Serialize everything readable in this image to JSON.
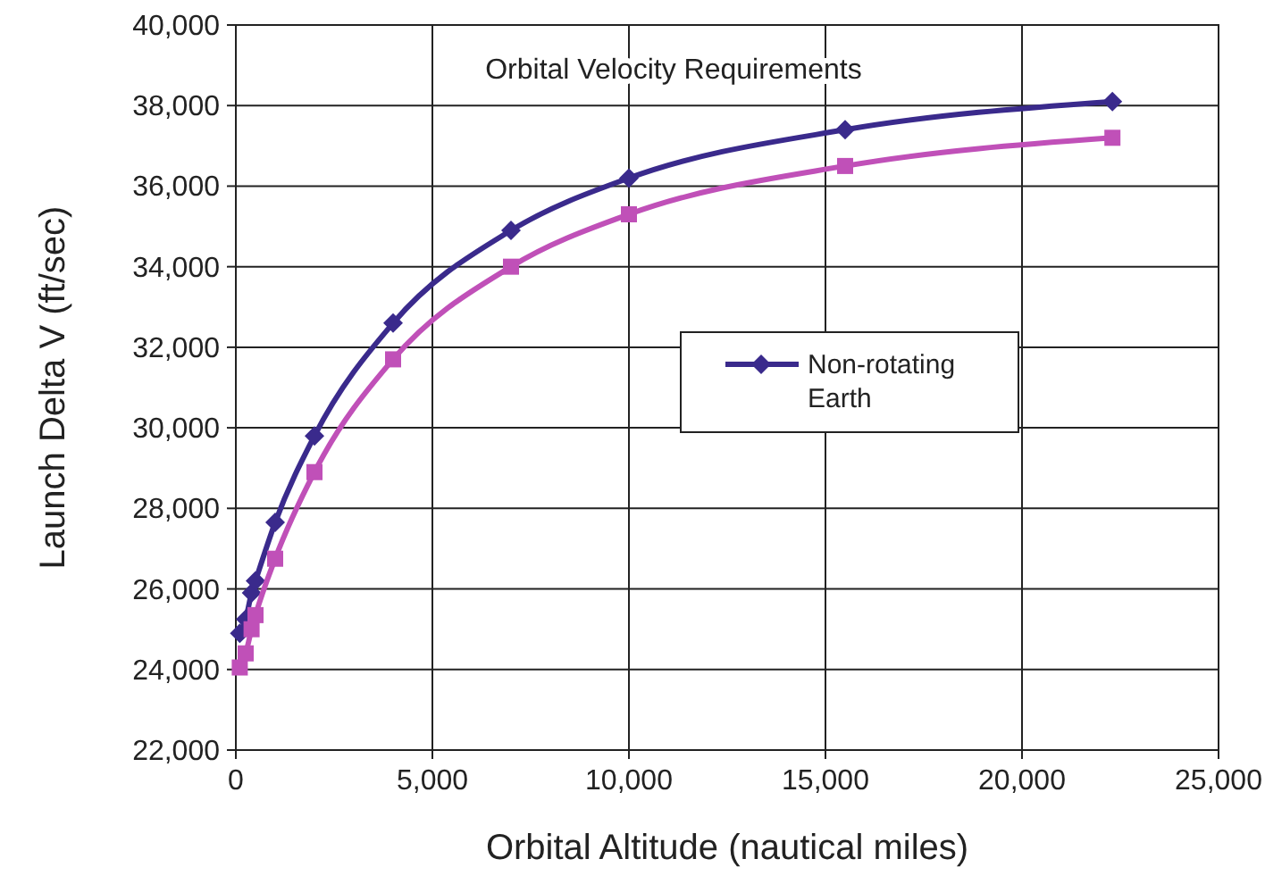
{
  "chart_data": {
    "type": "line",
    "title": "Orbital Velocity Requirements",
    "xlabel": "Orbital Altitude (nautical miles)",
    "ylabel": "Launch Delta V (ft/sec)",
    "x": [
      100,
      250,
      400,
      500,
      1000,
      2000,
      4000,
      7000,
      10000,
      15500,
      22300
    ],
    "series": [
      {
        "name": "Non-rotating Earth",
        "color": "#3a2a8c",
        "marker": "diamond",
        "values": [
          24900,
          25250,
          25900,
          26200,
          27650,
          29800,
          32600,
          34900,
          36200,
          37400,
          38100
        ]
      },
      {
        "color": "#c050b8",
        "marker": "square",
        "values": [
          24050,
          24400,
          25000,
          25350,
          26750,
          28900,
          31700,
          34000,
          35300,
          36500,
          37200
        ]
      }
    ],
    "xlim": [
      0,
      25000
    ],
    "xticks": [
      {
        "value": 0,
        "label": "0"
      },
      {
        "value": 5000,
        "label": "5,000"
      },
      {
        "value": 10000,
        "label": "10,000"
      },
      {
        "value": 15000,
        "label": "15,000"
      },
      {
        "value": 20000,
        "label": "20,000"
      },
      {
        "value": 25000,
        "label": "25,000"
      }
    ],
    "ylim": [
      22000,
      40000
    ],
    "yticks": [
      {
        "value": 22000,
        "label": "22,000"
      },
      {
        "value": 24000,
        "label": "24,000"
      },
      {
        "value": 26000,
        "label": "26,000"
      },
      {
        "value": 28000,
        "label": "28,000"
      },
      {
        "value": 30000,
        "label": "30,000"
      },
      {
        "value": 32000,
        "label": "32,000"
      },
      {
        "value": 34000,
        "label": "34,000"
      },
      {
        "value": 36000,
        "label": "36,000"
      },
      {
        "value": 38000,
        "label": "38,000"
      },
      {
        "value": 40000,
        "label": "40,000"
      }
    ],
    "grid": true,
    "legend": "center right",
    "line_style": "solid"
  }
}
